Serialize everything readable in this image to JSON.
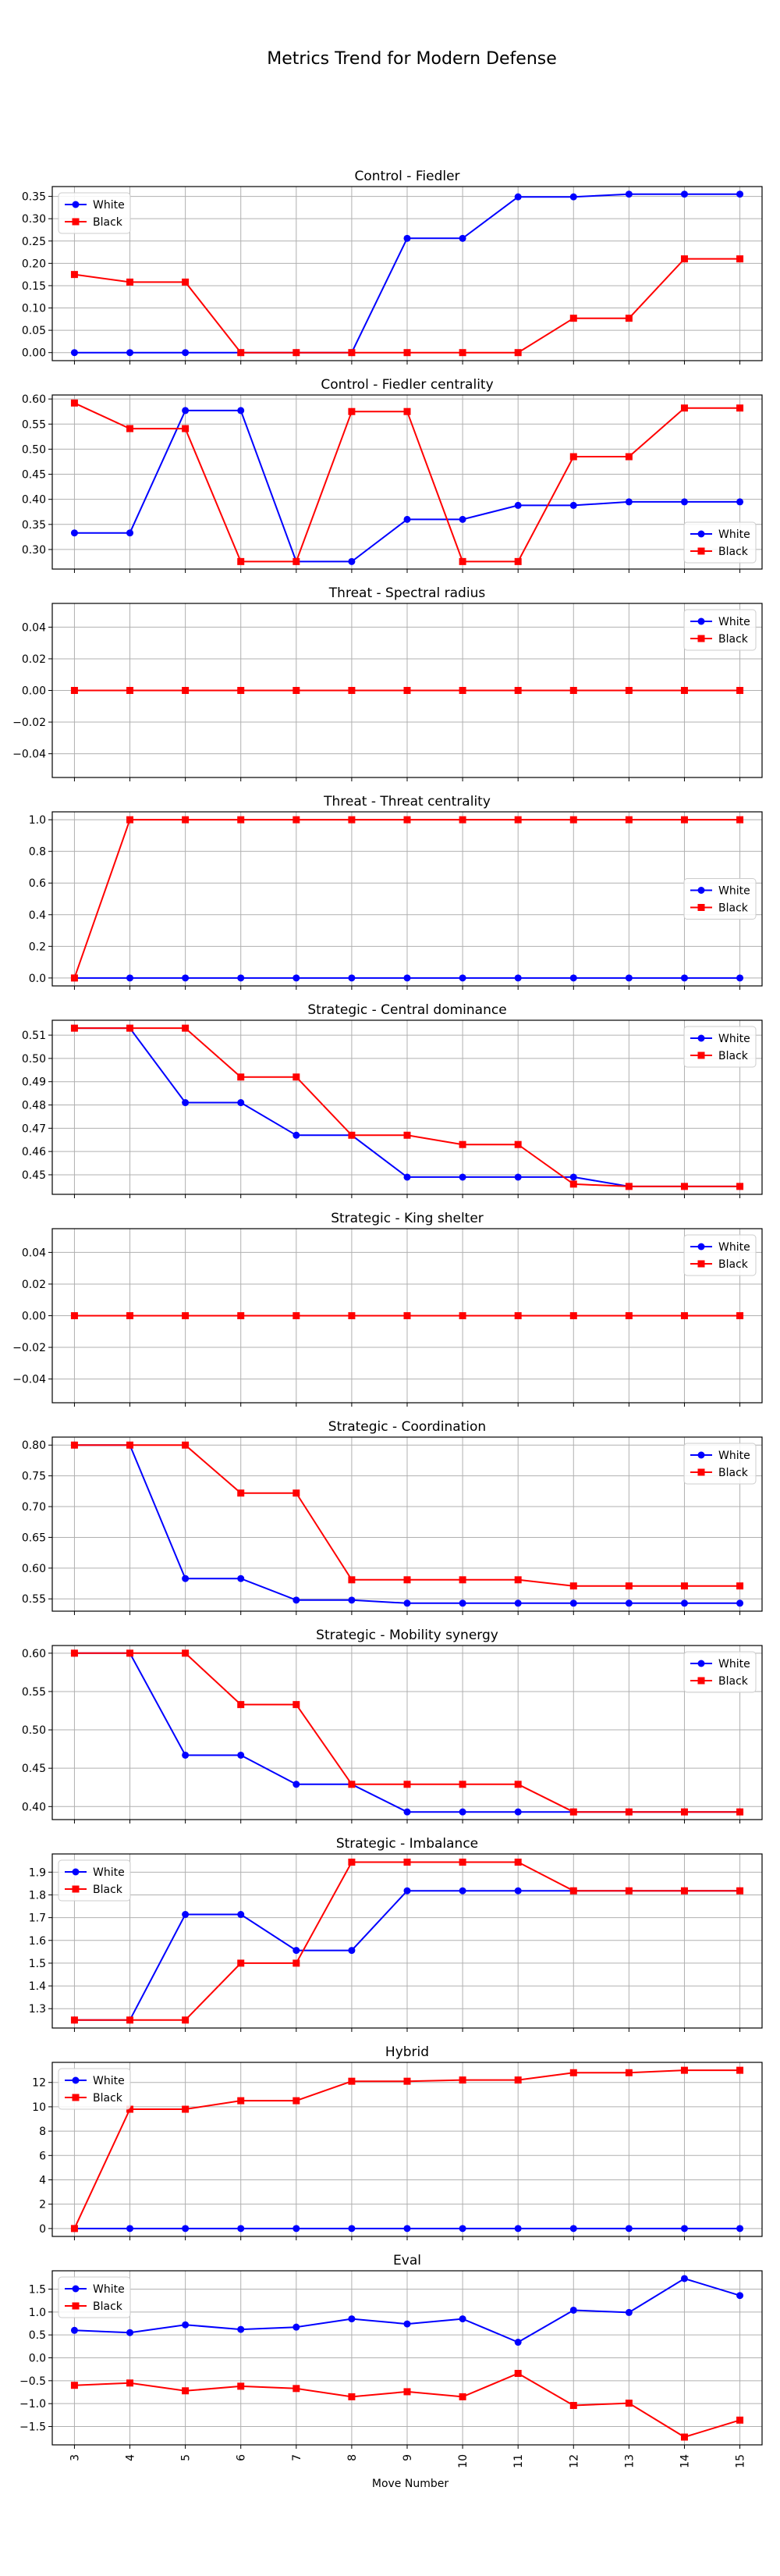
{
  "figure": {
    "title": "Metrics Trend for Modern Defense",
    "xlabel": "Move Number"
  },
  "colors": {
    "white_series": "#0000ff",
    "black_series": "#ff0000",
    "grid": "#b0b0b0"
  },
  "chart_data": [
    {
      "type": "line",
      "title": "Control - Fiedler",
      "x": [
        3,
        4,
        5,
        6,
        7,
        8,
        9,
        10,
        11,
        12,
        13,
        14,
        15
      ],
      "series": [
        {
          "name": "White",
          "marker": "circle",
          "values": [
            0,
            0,
            0,
            0,
            0,
            0,
            0.256,
            0.256,
            0.349,
            0.349,
            0.355,
            0.355,
            0.355
          ]
        },
        {
          "name": "Black",
          "marker": "square",
          "values": [
            0.175,
            0.158,
            0.158,
            0,
            0,
            0,
            0,
            0,
            0,
            0.077,
            0.077,
            0.21,
            0.21
          ]
        }
      ],
      "ylim": [
        -0.018,
        0.372
      ],
      "yticks": [
        0,
        0.05,
        0.1,
        0.15,
        0.2,
        0.25,
        0.3,
        0.35
      ],
      "ytick_labels": [
        "0.00",
        "0.05",
        "0.10",
        "0.15",
        "0.20",
        "0.25",
        "0.30",
        "0.35"
      ],
      "legend": "top-left",
      "grid": true
    },
    {
      "type": "line",
      "title": "Control - Fiedler centrality",
      "x": [
        3,
        4,
        5,
        6,
        7,
        8,
        9,
        10,
        11,
        12,
        13,
        14,
        15
      ],
      "series": [
        {
          "name": "White",
          "marker": "circle",
          "values": [
            0.333,
            0.333,
            0.577,
            0.577,
            0.276,
            0.276,
            0.36,
            0.36,
            0.388,
            0.388,
            0.395,
            0.395,
            0.395
          ]
        },
        {
          "name": "Black",
          "marker": "square",
          "values": [
            0.592,
            0.541,
            0.541,
            0.276,
            0.276,
            0.575,
            0.575,
            0.276,
            0.276,
            0.485,
            0.485,
            0.582,
            0.582
          ]
        }
      ],
      "ylim": [
        0.261,
        0.608
      ],
      "yticks": [
        0.3,
        0.35,
        0.4,
        0.45,
        0.5,
        0.55,
        0.6
      ],
      "ytick_labels": [
        "0.30",
        "0.35",
        "0.40",
        "0.45",
        "0.50",
        "0.55",
        "0.60"
      ],
      "legend": "bottom-right",
      "grid": true
    },
    {
      "type": "line",
      "title": "Threat - Spectral radius",
      "x": [
        3,
        4,
        5,
        6,
        7,
        8,
        9,
        10,
        11,
        12,
        13,
        14,
        15
      ],
      "series": [
        {
          "name": "White",
          "marker": "circle",
          "values": [
            0,
            0,
            0,
            0,
            0,
            0,
            0,
            0,
            0,
            0,
            0,
            0,
            0
          ]
        },
        {
          "name": "Black",
          "marker": "square",
          "values": [
            0,
            0,
            0,
            0,
            0,
            0,
            0,
            0,
            0,
            0,
            0,
            0,
            0
          ]
        }
      ],
      "ylim": [
        -0.055,
        0.055
      ],
      "yticks": [
        -0.04,
        -0.02,
        0,
        0.02,
        0.04
      ],
      "ytick_labels": [
        "−0.04",
        "−0.02",
        "0.00",
        "0.02",
        "0.04"
      ],
      "legend": "top-right",
      "grid": true
    },
    {
      "type": "line",
      "title": "Threat - Threat centrality",
      "x": [
        3,
        4,
        5,
        6,
        7,
        8,
        9,
        10,
        11,
        12,
        13,
        14,
        15
      ],
      "series": [
        {
          "name": "White",
          "marker": "circle",
          "values": [
            0,
            0,
            0,
            0,
            0,
            0,
            0,
            0,
            0,
            0,
            0,
            0,
            0
          ]
        },
        {
          "name": "Black",
          "marker": "square",
          "values": [
            0,
            1,
            1,
            1,
            1,
            1,
            1,
            1,
            1,
            1,
            1,
            1,
            1
          ]
        }
      ],
      "ylim": [
        -0.05,
        1.05
      ],
      "yticks": [
        0,
        0.2,
        0.4,
        0.6,
        0.8,
        1.0
      ],
      "ytick_labels": [
        "0.0",
        "0.2",
        "0.4",
        "0.6",
        "0.8",
        "1.0"
      ],
      "legend": "center-right",
      "grid": true
    },
    {
      "type": "line",
      "title": "Strategic - Central dominance",
      "x": [
        3,
        4,
        5,
        6,
        7,
        8,
        9,
        10,
        11,
        12,
        13,
        14,
        15
      ],
      "series": [
        {
          "name": "White",
          "marker": "circle",
          "values": [
            0.513,
            0.513,
            0.481,
            0.481,
            0.467,
            0.467,
            0.449,
            0.449,
            0.449,
            0.449,
            0.445,
            0.445,
            0.445
          ]
        },
        {
          "name": "Black",
          "marker": "square",
          "values": [
            0.513,
            0.513,
            0.513,
            0.492,
            0.492,
            0.467,
            0.467,
            0.463,
            0.463,
            0.446,
            0.445,
            0.445,
            0.445
          ]
        }
      ],
      "ylim": [
        0.4416,
        0.5164
      ],
      "yticks": [
        0.45,
        0.46,
        0.47,
        0.48,
        0.49,
        0.5,
        0.51
      ],
      "ytick_labels": [
        "0.45",
        "0.46",
        "0.47",
        "0.48",
        "0.49",
        "0.50",
        "0.51"
      ],
      "legend": "top-right",
      "grid": true
    },
    {
      "type": "line",
      "title": "Strategic - King shelter",
      "x": [
        3,
        4,
        5,
        6,
        7,
        8,
        9,
        10,
        11,
        12,
        13,
        14,
        15
      ],
      "series": [
        {
          "name": "White",
          "marker": "circle",
          "values": [
            0,
            0,
            0,
            0,
            0,
            0,
            0,
            0,
            0,
            0,
            0,
            0,
            0
          ]
        },
        {
          "name": "Black",
          "marker": "square",
          "values": [
            0,
            0,
            0,
            0,
            0,
            0,
            0,
            0,
            0,
            0,
            0,
            0,
            0
          ]
        }
      ],
      "ylim": [
        -0.055,
        0.055
      ],
      "yticks": [
        -0.04,
        -0.02,
        0,
        0.02,
        0.04
      ],
      "ytick_labels": [
        "−0.04",
        "−0.02",
        "0.00",
        "0.02",
        "0.04"
      ],
      "legend": "top-right",
      "grid": true
    },
    {
      "type": "line",
      "title": "Strategic - Coordination",
      "x": [
        3,
        4,
        5,
        6,
        7,
        8,
        9,
        10,
        11,
        12,
        13,
        14,
        15
      ],
      "series": [
        {
          "name": "White",
          "marker": "circle",
          "values": [
            0.8,
            0.8,
            0.583,
            0.583,
            0.548,
            0.548,
            0.543,
            0.543,
            0.543,
            0.543,
            0.543,
            0.543,
            0.543
          ]
        },
        {
          "name": "Black",
          "marker": "square",
          "values": [
            0.8,
            0.8,
            0.8,
            0.722,
            0.722,
            0.581,
            0.581,
            0.581,
            0.581,
            0.571,
            0.571,
            0.571,
            0.571
          ]
        }
      ],
      "ylim": [
        0.53,
        0.813
      ],
      "yticks": [
        0.55,
        0.6,
        0.65,
        0.7,
        0.75,
        0.8
      ],
      "ytick_labels": [
        "0.55",
        "0.60",
        "0.65",
        "0.70",
        "0.75",
        "0.80"
      ],
      "legend": "top-right",
      "grid": true
    },
    {
      "type": "line",
      "title": "Strategic - Mobility synergy",
      "x": [
        3,
        4,
        5,
        6,
        7,
        8,
        9,
        10,
        11,
        12,
        13,
        14,
        15
      ],
      "series": [
        {
          "name": "White",
          "marker": "circle",
          "values": [
            0.6,
            0.6,
            0.467,
            0.467,
            0.429,
            0.429,
            0.393,
            0.393,
            0.393,
            0.393,
            0.393,
            0.393,
            0.393
          ]
        },
        {
          "name": "Black",
          "marker": "square",
          "values": [
            0.6,
            0.6,
            0.6,
            0.533,
            0.533,
            0.429,
            0.429,
            0.429,
            0.429,
            0.393,
            0.393,
            0.393,
            0.393
          ]
        }
      ],
      "ylim": [
        0.383,
        0.61
      ],
      "yticks": [
        0.4,
        0.45,
        0.5,
        0.55,
        0.6
      ],
      "ytick_labels": [
        "0.40",
        "0.45",
        "0.50",
        "0.55",
        "0.60"
      ],
      "legend": "top-right",
      "grid": true
    },
    {
      "type": "line",
      "title": "Strategic - Imbalance",
      "x": [
        3,
        4,
        5,
        6,
        7,
        8,
        9,
        10,
        11,
        12,
        13,
        14,
        15
      ],
      "series": [
        {
          "name": "White",
          "marker": "circle",
          "values": [
            1.25,
            1.25,
            1.714,
            1.714,
            1.556,
            1.556,
            1.818,
            1.818,
            1.818,
            1.818,
            1.818,
            1.818,
            1.818
          ]
        },
        {
          "name": "Black",
          "marker": "square",
          "values": [
            1.25,
            1.25,
            1.25,
            1.5,
            1.5,
            1.944,
            1.944,
            1.944,
            1.944,
            1.818,
            1.818,
            1.818,
            1.818
          ]
        }
      ],
      "ylim": [
        1.215,
        1.98
      ],
      "yticks": [
        1.3,
        1.4,
        1.5,
        1.6,
        1.7,
        1.8,
        1.9
      ],
      "ytick_labels": [
        "1.3",
        "1.4",
        "1.5",
        "1.6",
        "1.7",
        "1.8",
        "1.9"
      ],
      "legend": "top-left",
      "grid": true
    },
    {
      "type": "line",
      "title": "Hybrid",
      "x": [
        3,
        4,
        5,
        6,
        7,
        8,
        9,
        10,
        11,
        12,
        13,
        14,
        15
      ],
      "series": [
        {
          "name": "White",
          "marker": "circle",
          "values": [
            0,
            0,
            0,
            0,
            0,
            0,
            0,
            0,
            0,
            0,
            0,
            0,
            0
          ]
        },
        {
          "name": "Black",
          "marker": "square",
          "values": [
            0,
            9.8,
            9.8,
            10.5,
            10.5,
            12.1,
            12.1,
            12.2,
            12.2,
            12.8,
            12.8,
            13.0,
            13.0
          ]
        }
      ],
      "ylim": [
        -0.65,
        13.65
      ],
      "yticks": [
        0,
        2,
        4,
        6,
        8,
        10,
        12
      ],
      "ytick_labels": [
        "0",
        "2",
        "4",
        "6",
        "8",
        "10",
        "12"
      ],
      "legend": "top-left",
      "grid": true
    },
    {
      "type": "line",
      "title": "Eval",
      "x": [
        3,
        4,
        5,
        6,
        7,
        8,
        9,
        10,
        11,
        12,
        13,
        14,
        15
      ],
      "series": [
        {
          "name": "White",
          "marker": "circle",
          "values": [
            0.6,
            0.55,
            0.72,
            0.62,
            0.67,
            0.85,
            0.74,
            0.85,
            0.34,
            1.04,
            0.99,
            1.73,
            1.36
          ]
        },
        {
          "name": "Black",
          "marker": "square",
          "values": [
            -0.6,
            -0.55,
            -0.72,
            -0.62,
            -0.67,
            -0.85,
            -0.74,
            -0.85,
            -0.34,
            -1.04,
            -0.99,
            -1.73,
            -1.36
          ]
        }
      ],
      "ylim": [
        -1.9,
        1.9
      ],
      "yticks": [
        -1.5,
        -1.0,
        -0.5,
        0,
        0.5,
        1.0,
        1.5
      ],
      "ytick_labels": [
        "−1.5",
        "−1.0",
        "−0.5",
        "0.0",
        "0.5",
        "1.0",
        "1.5"
      ],
      "legend": "top-left",
      "grid": true
    }
  ]
}
